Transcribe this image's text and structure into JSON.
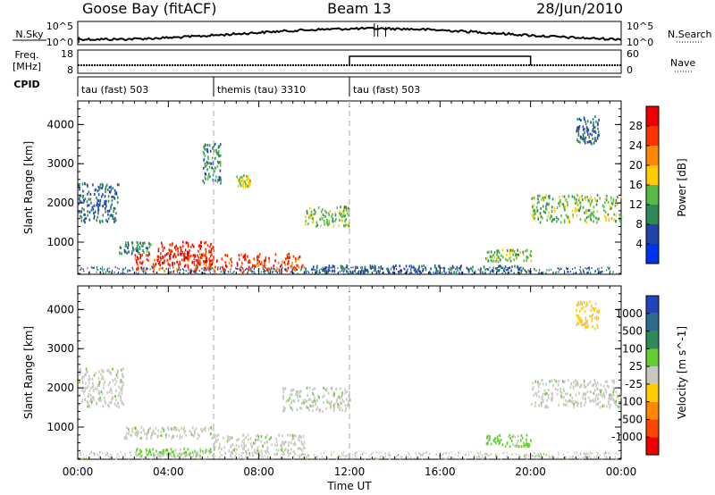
{
  "header": {
    "station": "Goose Bay (fitACF)",
    "beam": "Beam 13",
    "date": "28/Jun/2010"
  },
  "top_panels": {
    "nsky_label": "N.Sky",
    "nsky_ticks": [
      "10^5",
      "10^0"
    ],
    "nsearch_label": "N.Search",
    "nsearch_ticks": [
      "10^5",
      "10^0"
    ],
    "freq_label": "Freq.",
    "freq_unit": "[MHz]",
    "freq_ticks": [
      "18",
      "8"
    ],
    "nave_label": "Nave",
    "nave_ticks": [
      "60",
      "0"
    ],
    "cpid_label": "CPID",
    "cpid_segments": [
      {
        "label": "tau (fast) 503",
        "start_hour": 0,
        "end_hour": 6
      },
      {
        "label": "themis (tau) 3310",
        "start_hour": 6,
        "end_hour": 12
      },
      {
        "label": "tau (fast) 503",
        "start_hour": 12,
        "end_hour": 24
      }
    ]
  },
  "x_axis": {
    "label": "Time UT",
    "ticks": [
      "00:00",
      "04:00",
      "08:00",
      "12:00",
      "16:00",
      "20:00",
      "00:00"
    ]
  },
  "power_panel": {
    "ylabel": "Slant Range [km]",
    "y_ticks": [
      "1000",
      "2000",
      "3000",
      "4000"
    ],
    "colorbar_label": "Power [dB]",
    "colorbar_ticks": [
      "4",
      "8",
      "12",
      "16",
      "20",
      "24",
      "28"
    ],
    "colors": [
      "#0033ee",
      "#2244aa",
      "#2e8b57",
      "#55bb44",
      "#ffcc00",
      "#ff8800",
      "#ff3300",
      "#ee0000"
    ]
  },
  "velocity_panel": {
    "ylabel": "Slant Range [km]",
    "y_ticks": [
      "1000",
      "2000",
      "3000",
      "4000"
    ],
    "colorbar_label": "Velocity [m s^-1]",
    "colorbar_ticks": [
      "1000",
      "500",
      "100",
      "25",
      "-25",
      "-100",
      "-500",
      "-1000"
    ],
    "colors": [
      "#2244bb",
      "#2e6b8a",
      "#2e8b57",
      "#66cc33",
      "#c8c8c0",
      "#ffcc00",
      "#ff8800",
      "#ff4400",
      "#ee0000"
    ]
  },
  "chart_data": [
    {
      "type": "heatmap",
      "title": "Power [dB]",
      "xlabel": "Time UT",
      "ylabel": "Slant Range [km]",
      "xlim": [
        0,
        24
      ],
      "ylim": [
        180,
        4600
      ],
      "clim": [
        0,
        32
      ],
      "regions": [
        {
          "t": [
            0.0,
            1.8
          ],
          "r": [
            1500,
            2500
          ],
          "value": 8
        },
        {
          "t": [
            1.8,
            3.2
          ],
          "r": [
            700,
            1000
          ],
          "value": 10
        },
        {
          "t": [
            2.5,
            10.0
          ],
          "r": [
            250,
            700
          ],
          "value": 26
        },
        {
          "t": [
            3.5,
            6.0
          ],
          "r": [
            400,
            1000
          ],
          "value": 28
        },
        {
          "t": [
            5.5,
            6.3
          ],
          "r": [
            2500,
            3500
          ],
          "value": 10
        },
        {
          "t": [
            7.0,
            7.6
          ],
          "r": [
            2400,
            2700
          ],
          "value": 16
        },
        {
          "t": [
            10.0,
            12.0
          ],
          "r": [
            1400,
            1900
          ],
          "value": 14
        },
        {
          "t": [
            10.0,
            20.0
          ],
          "r": [
            200,
            400
          ],
          "value": 8
        },
        {
          "t": [
            18.0,
            20.0
          ],
          "r": [
            500,
            800
          ],
          "value": 14
        },
        {
          "t": [
            20.0,
            24.0
          ],
          "r": [
            1500,
            2200
          ],
          "value": 14
        },
        {
          "t": [
            22.0,
            23.0
          ],
          "r": [
            3500,
            4200
          ],
          "value": 8
        }
      ]
    },
    {
      "type": "heatmap",
      "title": "Velocity [m s^-1]",
      "xlabel": "Time UT",
      "ylabel": "Slant Range [km]",
      "xlim": [
        0,
        24
      ],
      "ylim": [
        180,
        4600
      ],
      "regions": [
        {
          "t": [
            0.0,
            2.0
          ],
          "r": [
            1500,
            2500
          ],
          "value": 0
        },
        {
          "t": [
            2.0,
            6.0
          ],
          "r": [
            700,
            1000
          ],
          "value": 0
        },
        {
          "t": [
            2.5,
            6.0
          ],
          "r": [
            250,
            450
          ],
          "value": 100
        },
        {
          "t": [
            6.0,
            10.0
          ],
          "r": [
            300,
            800
          ],
          "value": 0
        },
        {
          "t": [
            9.0,
            12.0
          ],
          "r": [
            1400,
            2000
          ],
          "value": 0
        },
        {
          "t": [
            18.0,
            20.0
          ],
          "r": [
            500,
            800
          ],
          "value": 100
        },
        {
          "t": [
            20.0,
            24.0
          ],
          "r": [
            1500,
            2200
          ],
          "value": 0
        },
        {
          "t": [
            22.0,
            23.0
          ],
          "r": [
            3500,
            4200
          ],
          "value": -100
        }
      ]
    }
  ]
}
